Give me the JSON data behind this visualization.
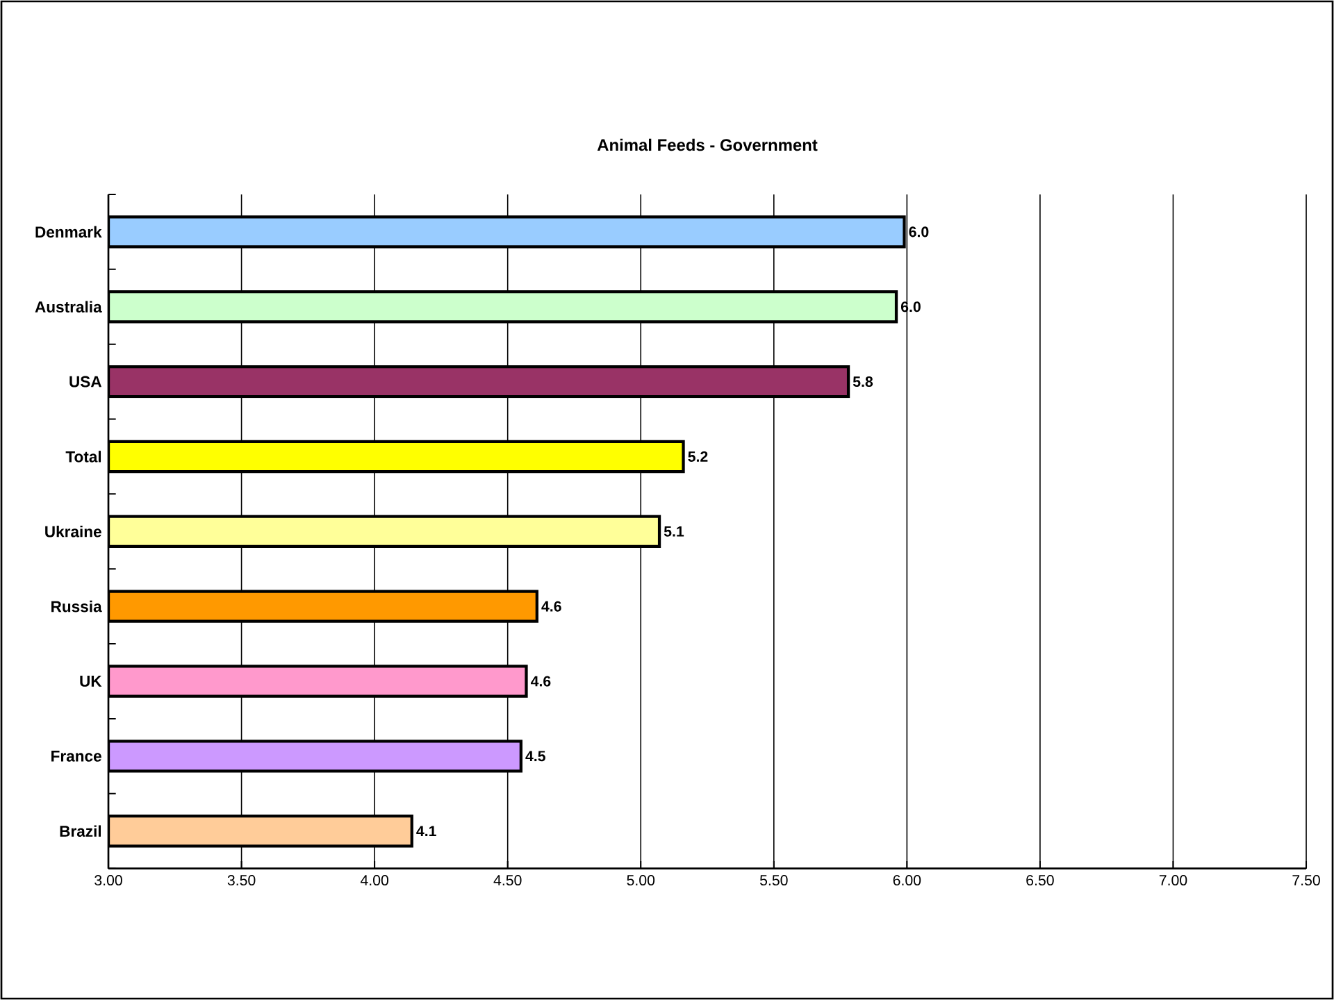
{
  "chart_data": {
    "type": "bar",
    "orientation": "horizontal",
    "title": "Animal Feeds - Government",
    "categories": [
      "Denmark",
      "Australia",
      "USA",
      "Total",
      "Ukraine",
      "Russia",
      "UK",
      "France",
      "Brazil"
    ],
    "values": [
      5.99,
      5.96,
      5.78,
      5.16,
      5.07,
      4.61,
      4.57,
      4.55,
      4.14
    ],
    "value_labels": [
      "6.0",
      "6.0",
      "5.8",
      "5.2",
      "5.1",
      "4.6",
      "4.6",
      "4.5",
      "4.1"
    ],
    "colors": [
      "#99ccff",
      "#ccffcc",
      "#993366",
      "#ffff00",
      "#ffff99",
      "#ff9900",
      "#ff99cc",
      "#cc99ff",
      "#ffcc99"
    ],
    "xlim": [
      3,
      7.5
    ],
    "xticks": [
      {
        "value": 3,
        "label": "3.00"
      },
      {
        "value": 3.5,
        "label": "3.50"
      },
      {
        "value": 4,
        "label": "4.00"
      },
      {
        "value": 4.5,
        "label": "4.50"
      },
      {
        "value": 5,
        "label": "5.00"
      },
      {
        "value": 5.5,
        "label": "5.50"
      },
      {
        "value": 6,
        "label": "6.00"
      },
      {
        "value": 6.5,
        "label": "6.50"
      },
      {
        "value": 7,
        "label": "7.00"
      },
      {
        "value": 7.5,
        "label": "7.50"
      }
    ],
    "grid": "x"
  }
}
